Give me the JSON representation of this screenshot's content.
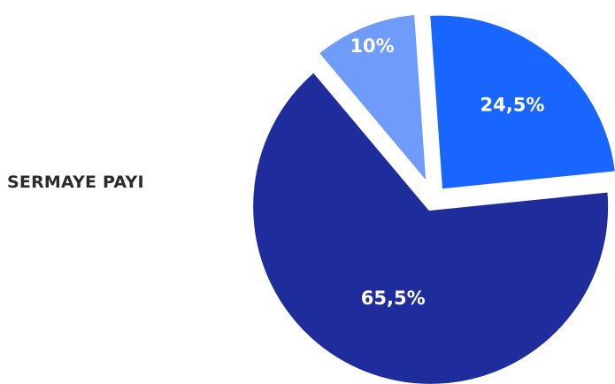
{
  "chart_data": {
    "type": "pie",
    "title": "SERMAYE PAYI",
    "categories": [
      "",
      "",
      ""
    ],
    "values": [
      10,
      24.5,
      65.5
    ],
    "labels": [
      "10%",
      "24,5%",
      "65,5%"
    ],
    "colors": [
      "#6f9bfb",
      "#1866ff",
      "#1f2d9c"
    ],
    "legend": "none"
  }
}
